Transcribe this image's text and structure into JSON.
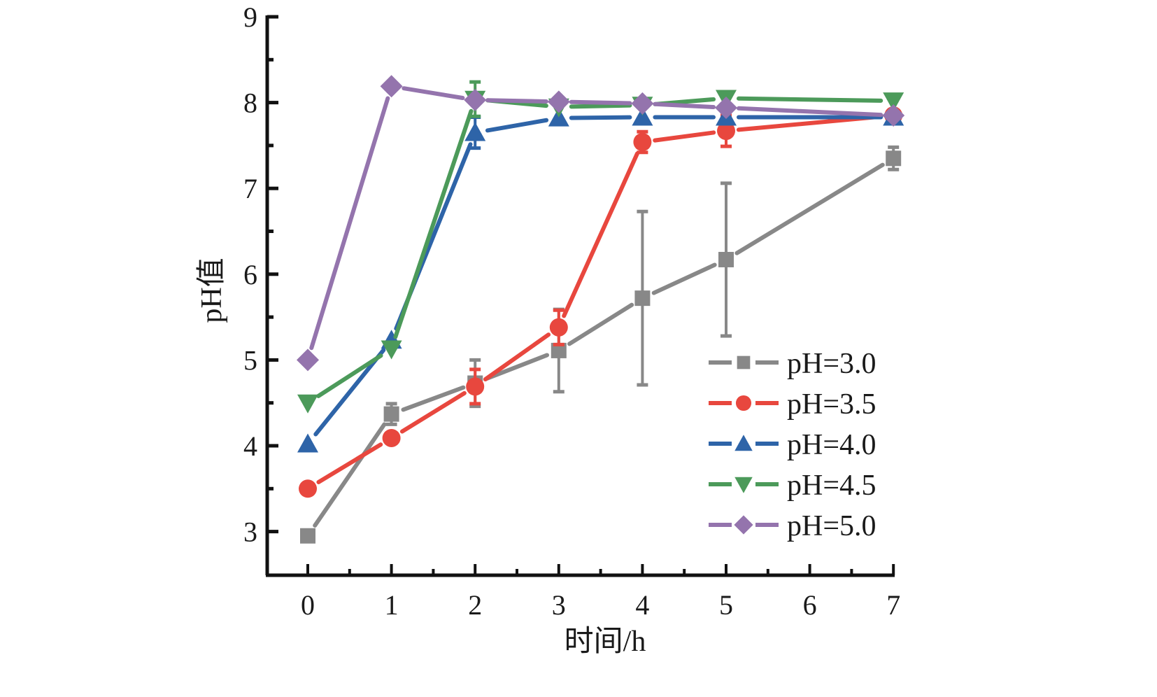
{
  "chart_data": {
    "type": "line",
    "title": "",
    "xlabel": "时间/h",
    "ylabel": "pH值",
    "xlim": [
      -0.5,
      7
    ],
    "ylim": [
      2.5,
      9
    ],
    "x_ticks": [
      0,
      1,
      2,
      3,
      4,
      5,
      6,
      7
    ],
    "x_tick_labels": [
      "0",
      "1",
      "2",
      "3",
      "4",
      "5",
      "6",
      "7"
    ],
    "y_ticks": [
      3,
      4,
      5,
      6,
      7,
      8,
      9
    ],
    "y_tick_labels": [
      "3",
      "4",
      "5",
      "6",
      "7",
      "8",
      "9"
    ],
    "grid": false,
    "legend_position": "bottom-right",
    "x": [
      0,
      1,
      2,
      3,
      4,
      5,
      7
    ],
    "series": [
      {
        "name": "pH=3.0",
        "color": "#888888",
        "marker": "square",
        "values": [
          2.95,
          4.37,
          4.73,
          5.11,
          5.72,
          6.17,
          7.35
        ],
        "errors": [
          0,
          0.12,
          0.27,
          0.48,
          1.01,
          0.89,
          0.13
        ]
      },
      {
        "name": "pH=3.5",
        "color": "#e8473e",
        "marker": "circle",
        "values": [
          3.5,
          4.09,
          4.69,
          5.38,
          7.54,
          7.67,
          7.85
        ],
        "errors": [
          0,
          0,
          0.2,
          0.2,
          0.12,
          0.18,
          0
        ]
      },
      {
        "name": "pH=4.0",
        "color": "#2e64a8",
        "marker": "triangle-up",
        "values": [
          4.02,
          5.23,
          7.65,
          7.82,
          7.83,
          7.83,
          7.83
        ],
        "errors": [
          0,
          0,
          0.18,
          0,
          0,
          0,
          0
        ]
      },
      {
        "name": "pH=4.5",
        "color": "#4c9a5a",
        "marker": "triangle-down",
        "values": [
          4.5,
          5.13,
          8.04,
          7.95,
          7.97,
          8.05,
          8.02
        ],
        "errors": [
          0,
          0,
          0.2,
          0,
          0,
          0,
          0
        ]
      },
      {
        "name": "pH=5.0",
        "color": "#9474ad",
        "marker": "diamond",
        "values": [
          5.0,
          8.19,
          8.03,
          8.01,
          7.99,
          7.94,
          7.85
        ],
        "errors": [
          0,
          0,
          0,
          0,
          0,
          0,
          0
        ]
      }
    ]
  }
}
